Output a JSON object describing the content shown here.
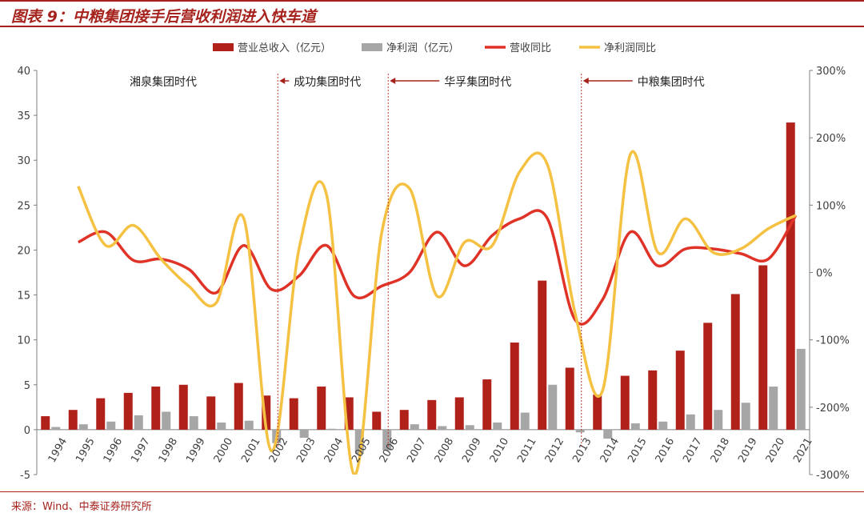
{
  "title": "图表 9：中粮集团接手后营收利润进入快车道",
  "source": "来源：Wind、中泰证券研究所",
  "colors": {
    "revenue": "#b0211a",
    "profit": "#a6a6a6",
    "revenue_yoy": "#e03327",
    "profit_yoy": "#f5c142",
    "accent": "#a5231c",
    "era_line": "#c0392b"
  },
  "chart_data": {
    "type": "bar",
    "categories": [
      "1994",
      "1995",
      "1996",
      "1997",
      "1998",
      "1999",
      "2000",
      "2001",
      "2002",
      "2003",
      "2004",
      "2005",
      "2006",
      "2007",
      "2008",
      "2009",
      "2010",
      "2011",
      "2012",
      "2013",
      "2014",
      "2015",
      "2016",
      "2017",
      "2018",
      "2019",
      "2020",
      "2021"
    ],
    "series": [
      {
        "name": "营业总收入（亿元）",
        "type": "bar",
        "axis": "left",
        "values": [
          1.5,
          2.2,
          3.5,
          4.1,
          4.8,
          5.0,
          3.7,
          5.2,
          3.8,
          3.5,
          4.8,
          3.6,
          2.0,
          2.2,
          3.3,
          3.6,
          5.6,
          9.7,
          16.6,
          6.9,
          3.9,
          6.0,
          6.6,
          8.8,
          11.9,
          15.1,
          18.3,
          34.2
        ]
      },
      {
        "name": "净利润（亿元）",
        "type": "bar",
        "axis": "left",
        "values": [
          0.3,
          0.6,
          0.9,
          1.6,
          2.0,
          1.5,
          0.8,
          1.0,
          -1.5,
          -0.9,
          0.1,
          -2.7,
          -2.3,
          0.6,
          0.4,
          0.5,
          0.8,
          1.9,
          5.0,
          -0.3,
          -1.0,
          0.7,
          0.9,
          1.7,
          2.2,
          3.0,
          4.8,
          9.0
        ]
      },
      {
        "name": "营收同比",
        "type": "line",
        "axis": "right",
        "values": [
          null,
          45,
          60,
          18,
          20,
          5,
          -30,
          40,
          -25,
          -5,
          40,
          -35,
          -20,
          0,
          60,
          10,
          55,
          80,
          80,
          -70,
          -40,
          60,
          10,
          35,
          35,
          28,
          20,
          85
        ]
      },
      {
        "name": "净利润同比",
        "type": "line",
        "axis": "right",
        "values": [
          null,
          128,
          40,
          70,
          20,
          -20,
          -45,
          80,
          -265,
          35,
          115,
          -300,
          60,
          125,
          -35,
          45,
          40,
          150,
          160,
          -60,
          -175,
          175,
          30,
          80,
          30,
          35,
          65,
          85
        ]
      }
    ],
    "y_left": {
      "min": -5,
      "max": 40,
      "ticks": [
        -5,
        0,
        5,
        10,
        15,
        20,
        25,
        30,
        35,
        40
      ]
    },
    "y_right": {
      "min": -300,
      "max": 300,
      "ticks": [
        "-300%",
        "-200%",
        "-100%",
        "0%",
        "100%",
        "200%",
        "300%"
      ]
    },
    "legend_position": "top",
    "grid": false,
    "annotations": [
      {
        "text": "湘泉集团时代",
        "at": "1994",
        "arrow": false
      },
      {
        "text": "成功集团时代",
        "at": "2002",
        "arrow": true
      },
      {
        "text": "华孚集团时代",
        "at": "2006",
        "arrow": true
      },
      {
        "text": "中粮集团时代",
        "at": "2013",
        "arrow": true
      }
    ]
  }
}
